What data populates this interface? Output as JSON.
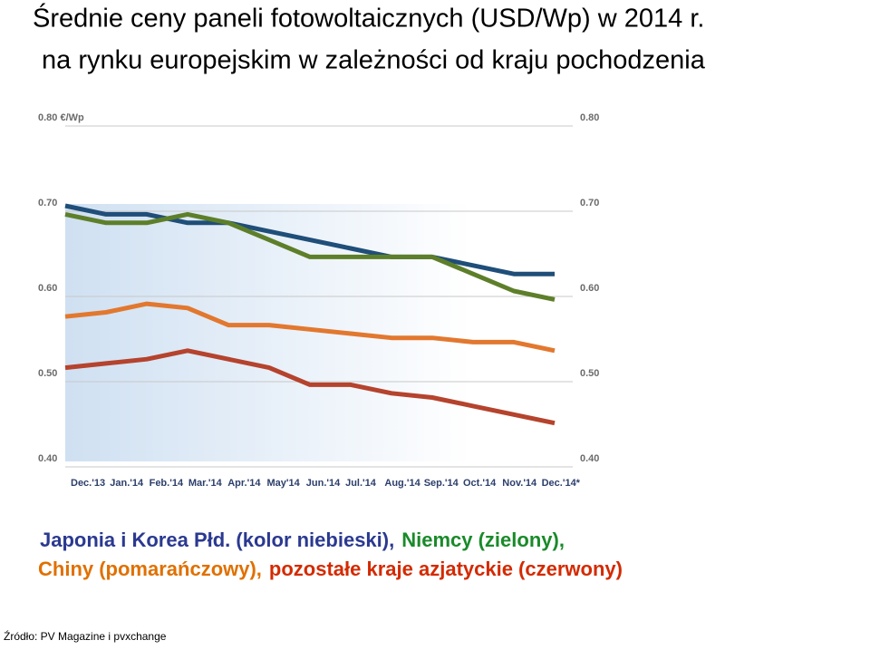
{
  "chart_data": {
    "type": "line",
    "title": "Średnie ceny paneli fotowoltaicznych (USD/Wp) w 2014 r.",
    "subtitle": "na rynku europejskim w zależności od kraju pochodzenia",
    "categories": [
      "Dec.'13",
      "Jan.'14",
      "Feb.'14",
      "Mar.'14",
      "Apr.'14",
      "May'14",
      "Jun.'14",
      "Jul.'14",
      "Aug.'14",
      "Sep.'14",
      "Oct.'14",
      "Nov.'14",
      "Dec.'14*"
    ],
    "series": [
      {
        "name": "Japonia i Korea Płd. (kolor niebieski),",
        "color": "#1f4e79",
        "legend_color": "#2b3990",
        "values": [
          0.7,
          0.69,
          0.69,
          0.68,
          0.68,
          0.67,
          0.66,
          0.65,
          0.64,
          0.64,
          0.63,
          0.62,
          0.62
        ]
      },
      {
        "name": "Niemcy (zielony),",
        "color": "#5e7f2a",
        "legend_color": "#1a8a2a",
        "values": [
          0.69,
          0.68,
          0.68,
          0.69,
          0.68,
          0.66,
          0.64,
          0.64,
          0.64,
          0.64,
          0.62,
          0.6,
          0.59
        ]
      },
      {
        "name": "Chiny (pomarańczowy),",
        "color": "#e2782f",
        "legend_color": "#e07000",
        "values": [
          0.57,
          0.575,
          0.585,
          0.58,
          0.56,
          0.56,
          0.555,
          0.55,
          0.545,
          0.545,
          0.54,
          0.54,
          0.53
        ]
      },
      {
        "name": "pozostałe kraje azjatyckie (czerwony)",
        "color": "#b5432d",
        "legend_color": "#d42a00",
        "values": [
          0.51,
          0.515,
          0.52,
          0.53,
          0.52,
          0.51,
          0.49,
          0.49,
          0.48,
          0.475,
          0.465,
          0.455,
          0.445
        ]
      }
    ],
    "ylim": [
      0.4,
      0.8
    ],
    "yticks": [
      {
        "value": 0.4,
        "label": "0.40"
      },
      {
        "value": 0.5,
        "label": "0.50"
      },
      {
        "value": 0.6,
        "label": "0.60"
      },
      {
        "value": 0.7,
        "label": "0.70"
      },
      {
        "value": 0.8,
        "label": "0.80 €/Wp"
      }
    ],
    "y2lim": [
      0.4,
      0.8
    ],
    "y2ticks": [
      {
        "value": 0.4,
        "label": "0.40"
      },
      {
        "value": 0.5,
        "label": "0.50"
      },
      {
        "value": 0.6,
        "label": "0.60"
      },
      {
        "value": 0.7,
        "label": "0.70"
      },
      {
        "value": 0.8,
        "label": "0.80"
      }
    ],
    "grid": true,
    "source": "Źródło: PV Magazine i pvxchange"
  }
}
